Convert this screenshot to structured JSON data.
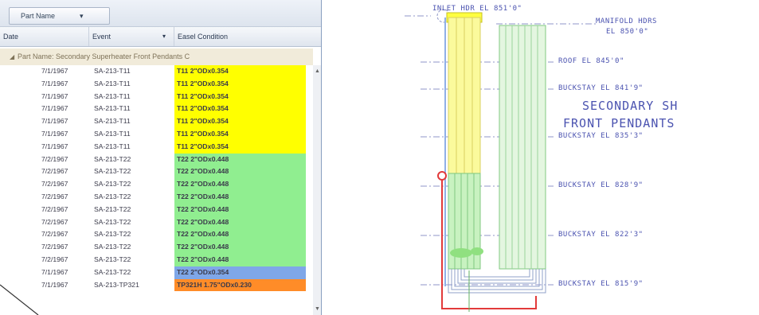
{
  "colors": {
    "t11": "#ffff00",
    "t22": "#90ee90",
    "t22_highlight": "#7fa7e8",
    "tp321h": "#ff8c28",
    "accent": "#4b53b0"
  },
  "grid": {
    "group_chip": {
      "label": "Part Name",
      "arrow": "▾"
    },
    "columns": {
      "date": "Date",
      "event": "Event",
      "event_sort": "▾",
      "condition": "Easel Condition"
    },
    "group_row": {
      "expander": "◢",
      "text": "Part Name: Secondary Superheater Front Pendants C"
    },
    "rows": [
      {
        "date": "7/1/1967",
        "event": "SA-213-T11",
        "condition": "T11 2\"ODx0.354",
        "color": "#ffff00"
      },
      {
        "date": "7/1/1967",
        "event": "SA-213-T11",
        "condition": "T11 2\"ODx0.354",
        "color": "#ffff00"
      },
      {
        "date": "7/1/1967",
        "event": "SA-213-T11",
        "condition": "T11 2\"ODx0.354",
        "color": "#ffff00"
      },
      {
        "date": "7/1/1967",
        "event": "SA-213-T11",
        "condition": "T11 2\"ODx0.354",
        "color": "#ffff00"
      },
      {
        "date": "7/1/1967",
        "event": "SA-213-T11",
        "condition": "T11 2\"ODx0.354",
        "color": "#ffff00"
      },
      {
        "date": "7/1/1967",
        "event": "SA-213-T11",
        "condition": "T11 2\"ODx0.354",
        "color": "#ffff00"
      },
      {
        "date": "7/1/1967",
        "event": "SA-213-T11",
        "condition": "T11 2\"ODx0.354",
        "color": "#ffff00"
      },
      {
        "date": "7/2/1967",
        "event": "SA-213-T22",
        "condition": "T22 2\"ODx0.448",
        "color": "#90ee90"
      },
      {
        "date": "7/2/1967",
        "event": "SA-213-T22",
        "condition": "T22 2\"ODx0.448",
        "color": "#90ee90"
      },
      {
        "date": "7/2/1967",
        "event": "SA-213-T22",
        "condition": "T22 2\"ODx0.448",
        "color": "#90ee90"
      },
      {
        "date": "7/2/1967",
        "event": "SA-213-T22",
        "condition": "T22 2\"ODx0.448",
        "color": "#90ee90"
      },
      {
        "date": "7/2/1967",
        "event": "SA-213-T22",
        "condition": "T22 2\"ODx0.448",
        "color": "#90ee90"
      },
      {
        "date": "7/2/1967",
        "event": "SA-213-T22",
        "condition": "T22 2\"ODx0.448",
        "color": "#90ee90"
      },
      {
        "date": "7/2/1967",
        "event": "SA-213-T22",
        "condition": "T22 2\"ODx0.448",
        "color": "#90ee90"
      },
      {
        "date": "7/2/1967",
        "event": "SA-213-T22",
        "condition": "T22 2\"ODx0.448",
        "color": "#90ee90"
      },
      {
        "date": "7/2/1967",
        "event": "SA-213-T22",
        "condition": "T22 2\"ODx0.448",
        "color": "#90ee90"
      },
      {
        "date": "7/1/1967",
        "event": "SA-213-T22",
        "condition": "T22 2\"ODx0.354",
        "color": "#7fa7e8"
      },
      {
        "date": "7/1/1967",
        "event": "SA-213-TP321",
        "condition": "TP321H 1.75\"ODx0.230",
        "color": "#ff8c28"
      }
    ],
    "scroll": {
      "up": "▲",
      "down": "▼"
    }
  },
  "drawing": {
    "labels": {
      "inlet": "INLET HDR EL 851'0\"",
      "manifold_1": "MANIFOLD HDRS",
      "manifold_2": "EL 850'0\"",
      "roof": "ROOF EL 845'0\"",
      "buckstay_1": "BUCKSTAY EL 841'9\"",
      "title_1": "SECONDARY SH",
      "title_2": "FRONT PENDANTS",
      "buckstay_2": "BUCKSTAY EL 835'3\"",
      "buckstay_3": "BUCKSTAY EL 828'9\"",
      "buckstay_4": "BUCKSTAY EL 822'3\"",
      "buckstay_5": "BUCKSTAY EL 815'9\""
    }
  }
}
